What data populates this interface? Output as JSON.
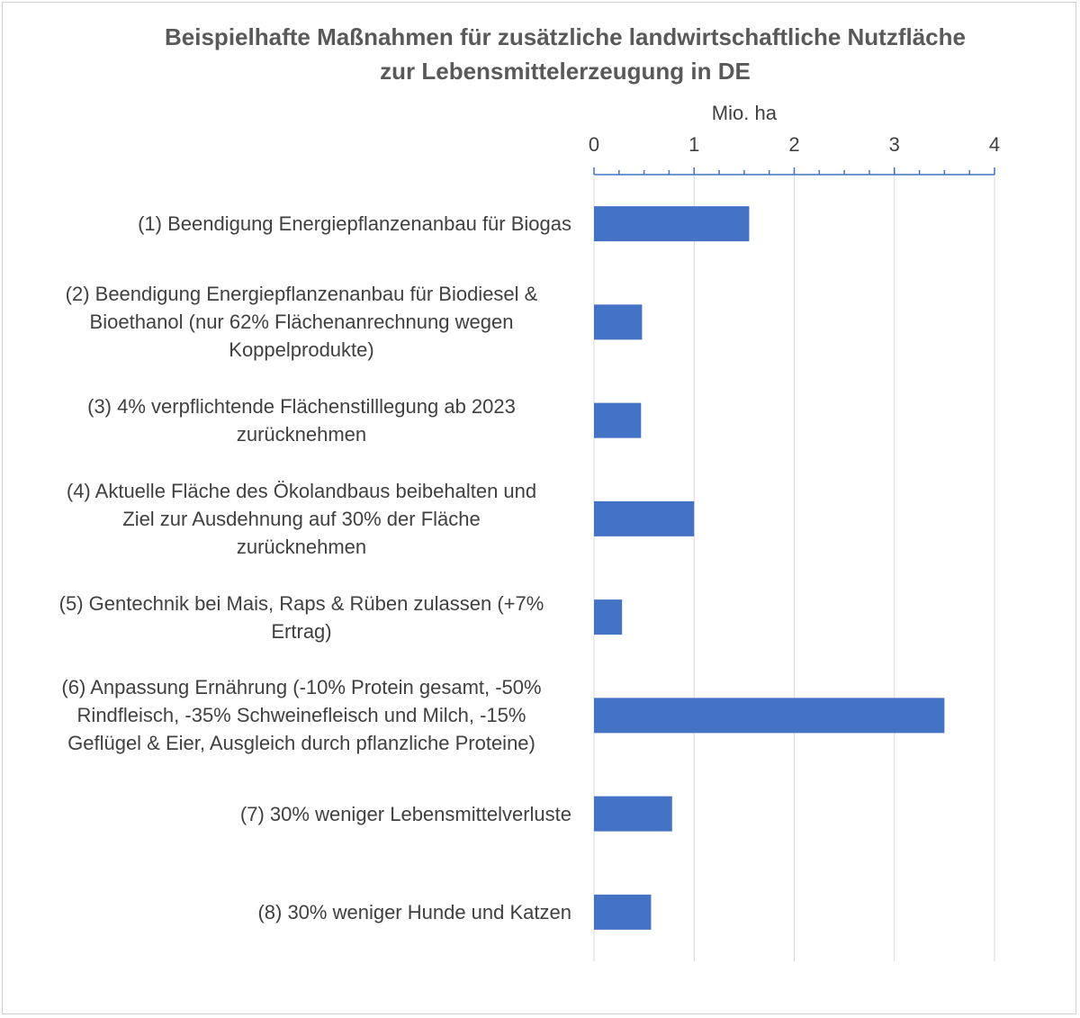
{
  "chart_data": {
    "type": "bar",
    "orientation": "horizontal",
    "title_lines": [
      "Beispielhafte Maßnahmen für zusätzliche landwirtschaftliche Nutzfläche",
      "zur Lebensmittelerzeugung in DE"
    ],
    "xlabel": "Mio. ha",
    "xlim": [
      0,
      4
    ],
    "x_ticks": [
      "0",
      "1",
      "2",
      "3",
      "4"
    ],
    "x_axis_position": "top",
    "grid": "vertical",
    "bar_color": "#4472C4",
    "categories": [
      [
        "(1) Beendigung Energiepflanzenanbau für Biogas"
      ],
      [
        "(2) Beendigung Energiepflanzenanbau für Biodiesel &",
        "Bioethanol (nur 62% Flächenanrechnung wegen",
        "Koppelprodukte)"
      ],
      [
        "(3) 4% verpflichtende Flächenstilllegung ab 2023",
        "zurücknehmen"
      ],
      [
        "(4) Aktuelle Fläche des Ökolandbaus beibehalten und",
        "Ziel zur Ausdehnung auf 30% der Fläche",
        "zurücknehmen"
      ],
      [
        "(5) Gentechnik bei Mais, Raps & Rüben zulassen (+7%",
        "Ertrag)"
      ],
      [
        "(6) Anpassung Ernährung (-10% Protein gesamt, -50%",
        "Rindfleisch, -35% Schweinefleisch und Milch, -15%",
        "Geflügel & Eier, Ausgleich durch pflanzliche Proteine)"
      ],
      [
        "(7) 30% weniger Lebensmittelverluste"
      ],
      [
        "(8) 30% weniger Hunde und Katzen"
      ]
    ],
    "values": [
      1.55,
      0.48,
      0.47,
      1.0,
      0.28,
      3.5,
      0.78,
      0.57
    ]
  }
}
